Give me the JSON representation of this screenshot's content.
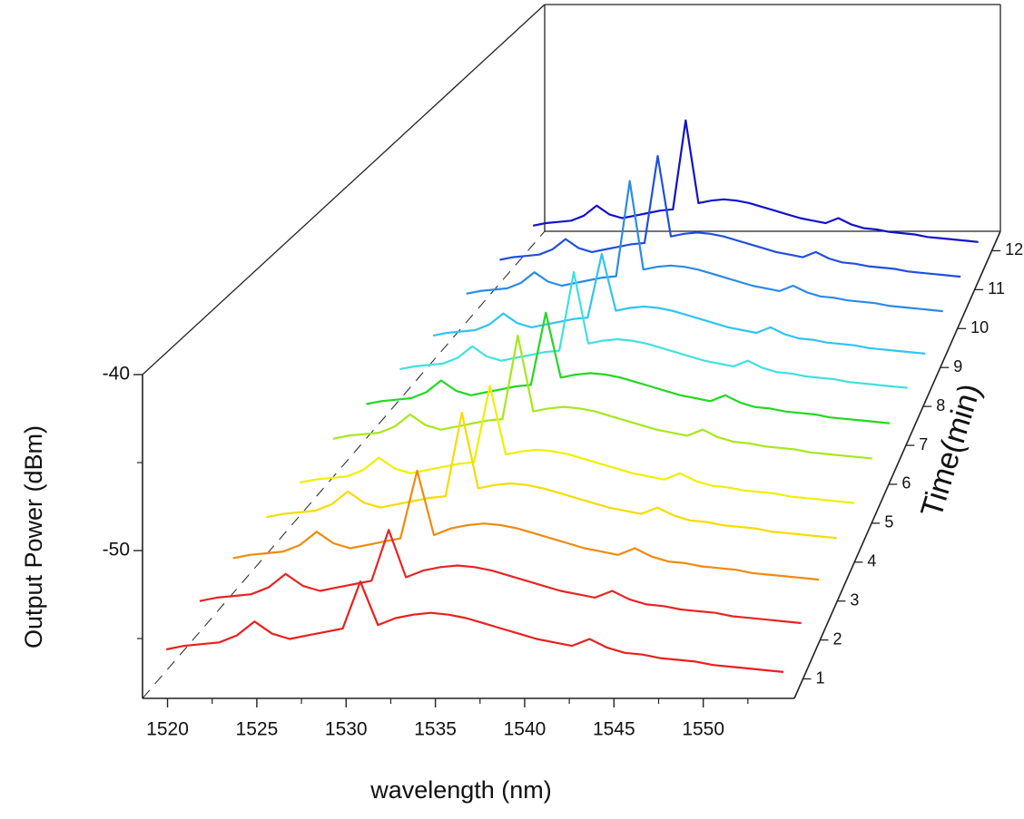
{
  "chart_data": {
    "type": "waterfall",
    "xlabel": "wavelength (nm)",
    "ylabel": "Output Power (dBm)",
    "zlabel": "Time(min)",
    "xlim": [
      1518.6,
      1555.1
    ],
    "ylim": [
      -58.4,
      -40
    ],
    "zlim": [
      0.5,
      12.5
    ],
    "xticks": [
      1520,
      1525,
      1530,
      1535,
      1540,
      1545,
      1550
    ],
    "xminor": [
      1522.5,
      1527.5,
      1532.5,
      1537.5,
      1542.5,
      1547.5,
      1552.5
    ],
    "yticks": [
      -40,
      -50
    ],
    "yminor": [
      -45,
      -55
    ],
    "zticks": [
      1,
      2,
      3,
      4,
      5,
      6,
      7,
      8,
      9,
      10,
      11,
      12
    ],
    "x": [
      1519,
      1520,
      1521,
      1522,
      1523,
      1524,
      1525,
      1526,
      1527,
      1528,
      1529,
      1530,
      1531,
      1532,
      1533,
      1534,
      1535,
      1536,
      1537,
      1538,
      1539,
      1540,
      1541,
      1542,
      1543,
      1544,
      1545,
      1546,
      1547,
      1548,
      1549,
      1550,
      1551,
      1552,
      1553,
      1554
    ],
    "series": [
      {
        "z": 1,
        "color": "#e8201e",
        "values": [
          -56.7,
          -56.5,
          -56.4,
          -56.3,
          -55.9,
          -55.1,
          -55.8,
          -56.1,
          -55.9,
          -55.7,
          -55.5,
          -52.8,
          -55.3,
          -54.9,
          -54.7,
          -54.6,
          -54.7,
          -54.9,
          -55.2,
          -55.5,
          -55.8,
          -56.1,
          -56.3,
          -56.5,
          -56.1,
          -56.6,
          -56.9,
          -57.0,
          -57.2,
          -57.3,
          -57.4,
          -57.6,
          -57.7,
          -57.8,
          -57.9,
          -58.0
        ]
      },
      {
        "z": 2,
        "color": "#e82424",
        "values": [
          -56.1,
          -55.9,
          -55.8,
          -55.7,
          -55.3,
          -54.5,
          -55.2,
          -55.5,
          -55.3,
          -55.1,
          -54.9,
          -51.9,
          -54.7,
          -54.3,
          -54.1,
          -54.0,
          -54.1,
          -54.3,
          -54.6,
          -54.9,
          -55.2,
          -55.5,
          -55.7,
          -55.9,
          -55.5,
          -56.0,
          -56.3,
          -56.4,
          -56.6,
          -56.7,
          -56.8,
          -57.0,
          -57.1,
          -57.2,
          -57.3,
          -57.4
        ]
      },
      {
        "z": 3,
        "color": "#f08a10",
        "values": [
          -55.8,
          -55.6,
          -55.5,
          -55.4,
          -55.0,
          -54.2,
          -54.9,
          -55.2,
          -55.0,
          -54.8,
          -54.6,
          -50.5,
          -54.4,
          -54.0,
          -53.8,
          -53.7,
          -53.8,
          -54.0,
          -54.3,
          -54.6,
          -54.9,
          -55.2,
          -55.4,
          -55.6,
          -55.2,
          -55.7,
          -56.0,
          -56.1,
          -56.3,
          -56.4,
          -56.5,
          -56.7,
          -56.8,
          -56.9,
          -57.0,
          -57.1
        ]
      },
      {
        "z": 4,
        "color": "#f5dc00",
        "values": [
          -55.6,
          -55.4,
          -55.3,
          -55.2,
          -54.8,
          -54.0,
          -54.7,
          -55.0,
          -54.8,
          -54.6,
          -54.4,
          -54.3,
          -49.1,
          -53.8,
          -53.6,
          -53.5,
          -53.6,
          -53.8,
          -54.1,
          -54.4,
          -54.7,
          -55.0,
          -55.2,
          -55.4,
          -55.0,
          -55.5,
          -55.8,
          -55.9,
          -56.1,
          -56.2,
          -56.3,
          -56.5,
          -56.6,
          -56.7,
          -56.8,
          -56.9
        ]
      },
      {
        "z": 5,
        "color": "#eef000",
        "values": [
          -55.8,
          -55.6,
          -55.5,
          -55.4,
          -55.0,
          -54.2,
          -54.9,
          -55.2,
          -55.0,
          -54.8,
          -54.6,
          -54.5,
          -49.6,
          -54.0,
          -53.8,
          -53.7,
          -53.8,
          -54.0,
          -54.3,
          -54.6,
          -54.9,
          -55.2,
          -55.4,
          -55.6,
          -55.2,
          -55.7,
          -56.0,
          -56.1,
          -56.3,
          -56.4,
          -56.5,
          -56.7,
          -56.8,
          -56.9,
          -57.0,
          -57.1
        ]
      },
      {
        "z": 6,
        "color": "#a6e81a",
        "values": [
          -55.4,
          -55.2,
          -55.1,
          -55.0,
          -54.6,
          -53.8,
          -54.5,
          -54.8,
          -54.6,
          -54.4,
          -54.2,
          -54.1,
          -48.6,
          -53.6,
          -53.4,
          -53.3,
          -53.4,
          -53.6,
          -53.9,
          -54.2,
          -54.5,
          -54.8,
          -55.0,
          -55.2,
          -54.8,
          -55.3,
          -55.6,
          -55.7,
          -55.9,
          -56.0,
          -56.1,
          -56.3,
          -56.4,
          -56.5,
          -56.6,
          -56.7
        ]
      },
      {
        "z": 7,
        "color": "#22d822",
        "values": [
          -55.6,
          -55.4,
          -55.3,
          -55.2,
          -54.8,
          -54.0,
          -54.7,
          -55.0,
          -54.8,
          -54.6,
          -54.4,
          -54.3,
          -49.4,
          -53.8,
          -53.6,
          -53.5,
          -53.6,
          -53.8,
          -54.1,
          -54.4,
          -54.7,
          -55.0,
          -55.2,
          -55.4,
          -55.0,
          -55.5,
          -55.8,
          -55.9,
          -56.1,
          -56.2,
          -56.3,
          -56.5,
          -56.6,
          -56.7,
          -56.8,
          -56.9
        ]
      },
      {
        "z": 8,
        "color": "#40e0e0",
        "values": [
          -55.8,
          -55.6,
          -55.5,
          -55.4,
          -55.0,
          -54.2,
          -54.9,
          -55.2,
          -55.0,
          -54.8,
          -54.6,
          -54.5,
          -49.0,
          -54.0,
          -53.8,
          -53.7,
          -53.8,
          -54.0,
          -54.3,
          -54.6,
          -54.9,
          -55.2,
          -55.4,
          -55.6,
          -55.2,
          -55.7,
          -56.0,
          -56.1,
          -56.3,
          -56.4,
          -56.5,
          -56.7,
          -56.8,
          -56.9,
          -57.0,
          -57.1
        ]
      },
      {
        "z": 9,
        "color": "#30c4f0",
        "values": [
          -56.1,
          -55.9,
          -55.8,
          -55.7,
          -55.3,
          -54.5,
          -55.2,
          -55.5,
          -55.3,
          -55.1,
          -54.9,
          -54.8,
          -50.2,
          -54.3,
          -54.1,
          -54.0,
          -54.1,
          -54.3,
          -54.6,
          -54.9,
          -55.2,
          -55.5,
          -55.7,
          -55.9,
          -55.5,
          -56.0,
          -56.3,
          -56.4,
          -56.6,
          -56.7,
          -56.8,
          -57.0,
          -57.1,
          -57.2,
          -57.3,
          -57.4
        ]
      },
      {
        "z": 10,
        "color": "#2a8ae8",
        "values": [
          -55.8,
          -55.6,
          -55.5,
          -55.4,
          -55.0,
          -54.2,
          -54.9,
          -55.2,
          -55.0,
          -54.8,
          -54.6,
          -54.5,
          -47.4,
          -54.0,
          -53.8,
          -53.7,
          -53.8,
          -54.0,
          -54.3,
          -54.6,
          -54.9,
          -55.2,
          -55.4,
          -55.6,
          -55.2,
          -55.7,
          -56.0,
          -56.1,
          -56.3,
          -56.4,
          -56.5,
          -56.7,
          -56.8,
          -56.9,
          -57.0,
          -57.1
        ]
      },
      {
        "z": 11,
        "color": "#1f4fe0",
        "values": [
          -56.1,
          -55.9,
          -55.8,
          -55.7,
          -55.3,
          -54.5,
          -55.2,
          -55.5,
          -55.3,
          -55.1,
          -54.9,
          -54.8,
          -48.1,
          -54.3,
          -54.1,
          -54.0,
          -54.1,
          -54.3,
          -54.6,
          -54.9,
          -55.2,
          -55.5,
          -55.7,
          -55.9,
          -55.5,
          -56.0,
          -56.3,
          -56.4,
          -56.6,
          -56.7,
          -56.8,
          -57.0,
          -57.1,
          -57.2,
          -57.3,
          -57.4
        ]
      },
      {
        "z": 12,
        "color": "#1212c8",
        "values": [
          -56.4,
          -56.2,
          -56.1,
          -56.0,
          -55.6,
          -54.8,
          -55.5,
          -55.8,
          -55.6,
          -55.4,
          -55.2,
          -55.1,
          -48.0,
          -54.6,
          -54.4,
          -54.3,
          -54.4,
          -54.6,
          -54.9,
          -55.2,
          -55.5,
          -55.8,
          -56.0,
          -56.2,
          -55.8,
          -56.3,
          -56.6,
          -56.7,
          -56.9,
          -57.0,
          -57.1,
          -57.3,
          -57.4,
          -57.5,
          -57.6,
          -57.7
        ]
      }
    ]
  }
}
